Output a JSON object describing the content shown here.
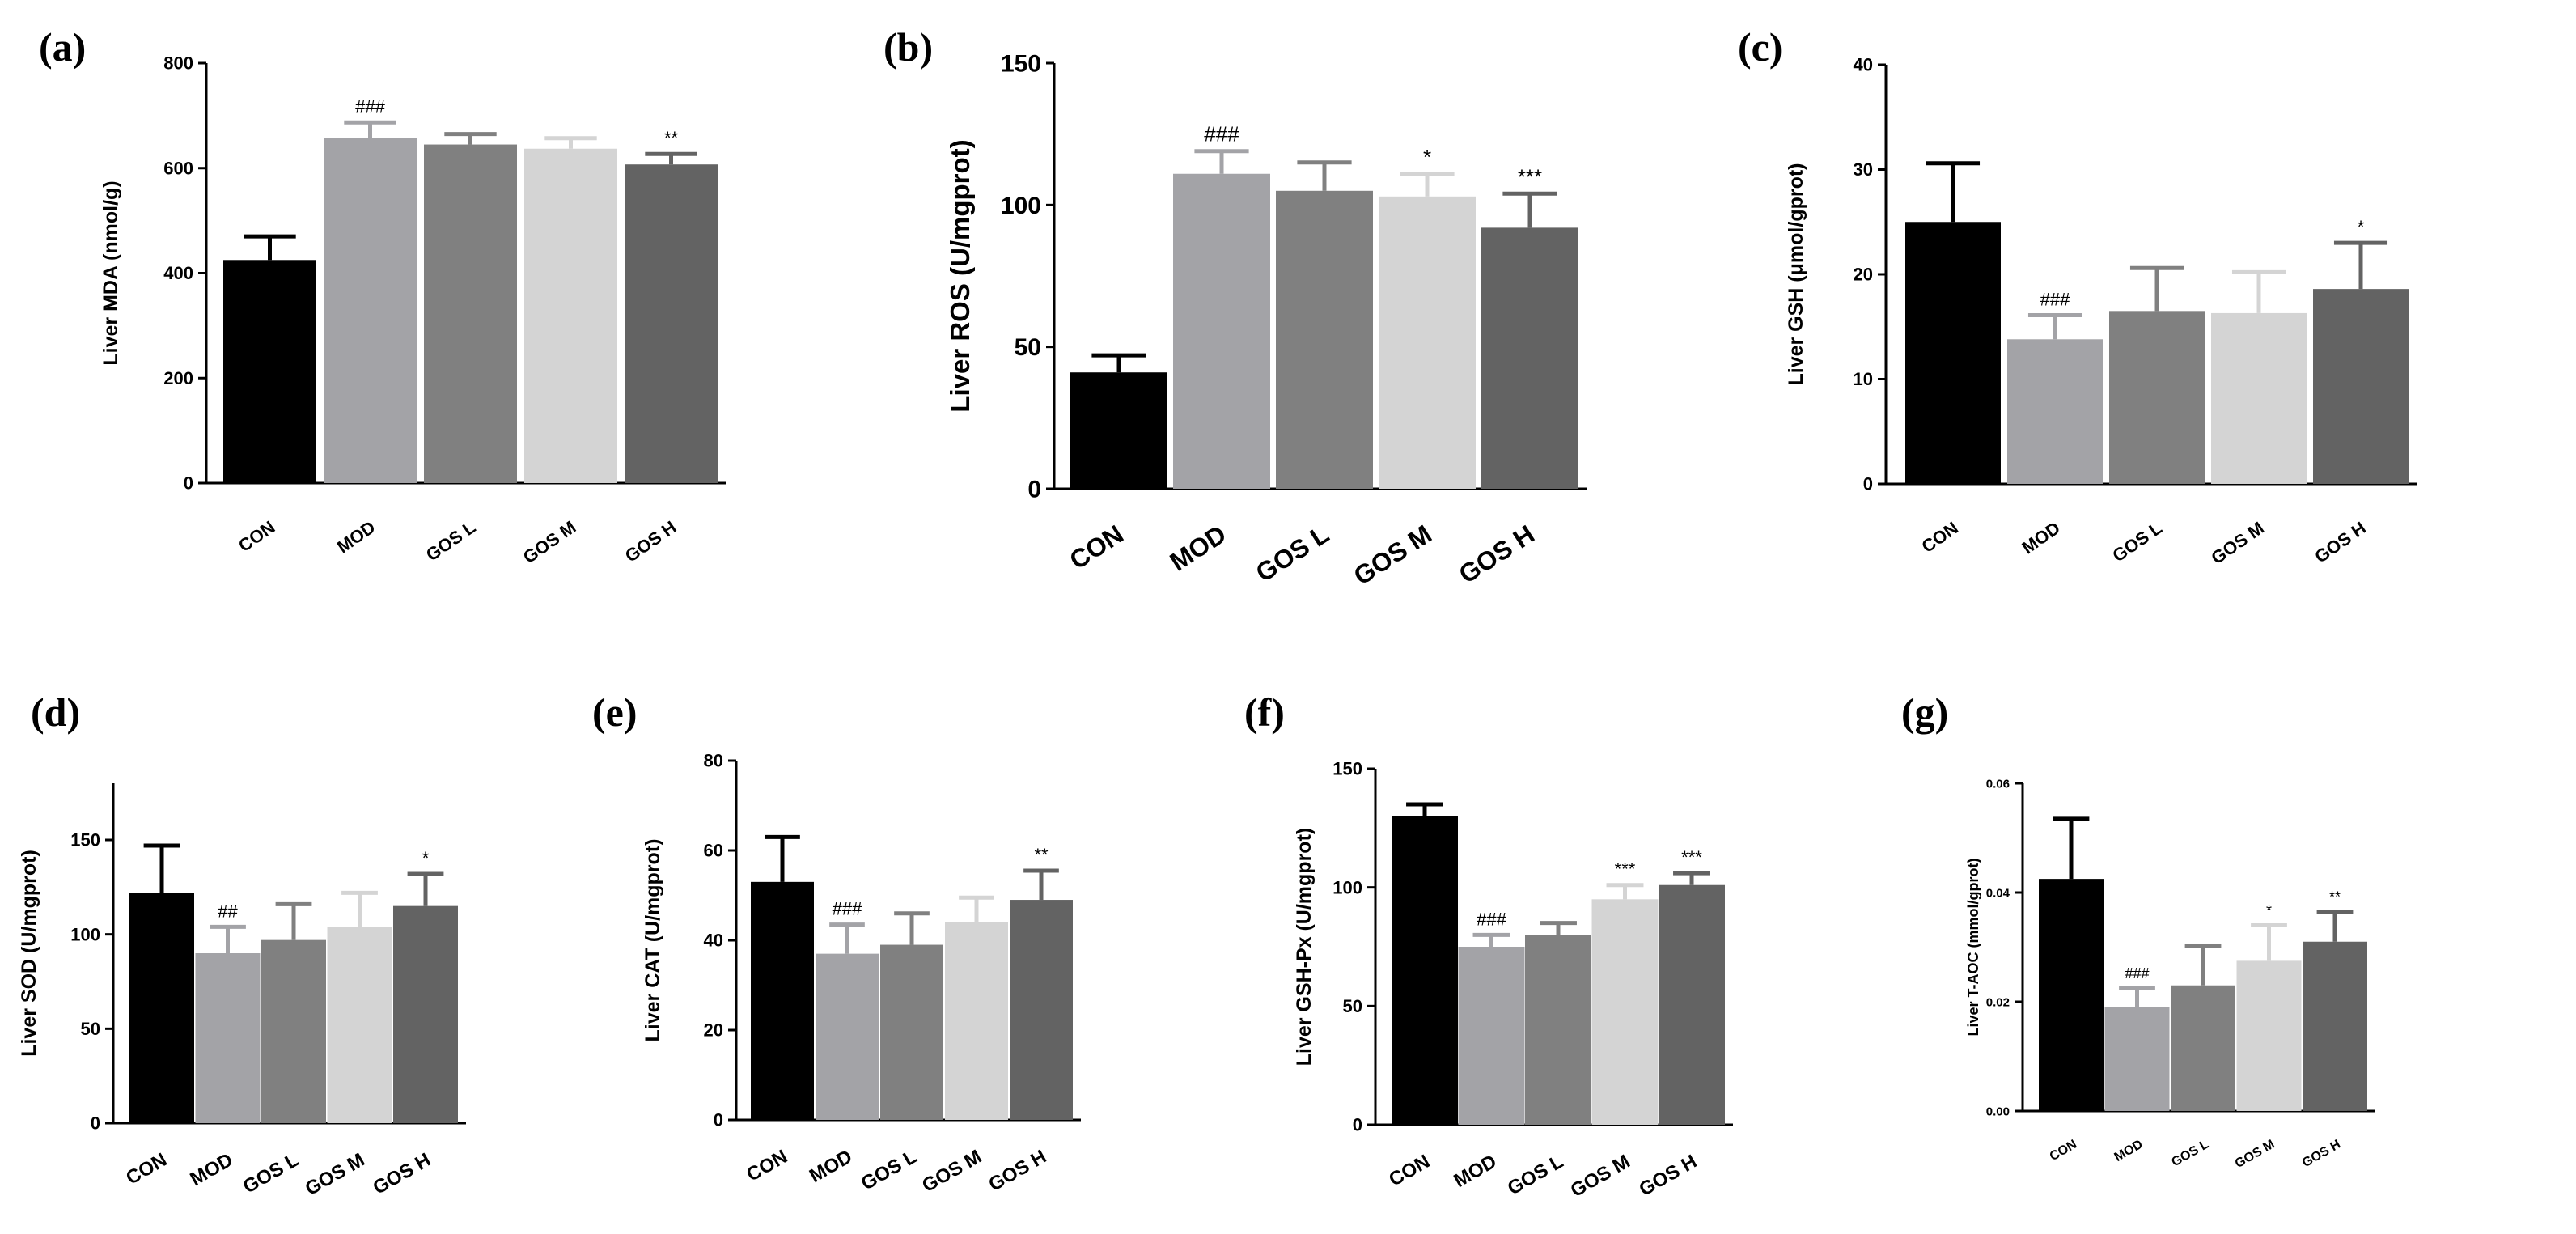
{
  "figure": {
    "categories": [
      "CON",
      "MOD",
      "GOS L",
      "GOS M",
      "GOS H"
    ],
    "bar_colors": [
      "#000000",
      "#a3a3a7",
      "#808080",
      "#d4d4d4",
      "#636363"
    ]
  },
  "chart_data": [
    {
      "panel": "(a)",
      "type": "bar",
      "categories": [
        "CON",
        "MOD",
        "GOS L",
        "GOS M",
        "GOS H"
      ],
      "values": [
        425,
        657,
        645,
        637,
        607
      ],
      "errors": [
        45,
        30,
        20,
        20,
        20
      ],
      "significance": [
        "",
        "###",
        "",
        "",
        "**"
      ],
      "ylabel": "Liver MDA (nmol/g)",
      "ylim": [
        0,
        800
      ],
      "yticks": [
        "0",
        "200",
        "400",
        "600",
        "800"
      ]
    },
    {
      "panel": "(b)",
      "type": "bar",
      "categories": [
        "CON",
        "MOD",
        "GOS L",
        "GOS M",
        "GOS H"
      ],
      "values": [
        41,
        111,
        105,
        103,
        92
      ],
      "errors": [
        6,
        8,
        10,
        8,
        12
      ],
      "significance": [
        "",
        "###",
        "",
        "*",
        "***"
      ],
      "ylabel": "Liver ROS (U/mgprot)",
      "ylim": [
        0,
        150
      ],
      "yticks": [
        "0",
        "50",
        "100",
        "150"
      ]
    },
    {
      "panel": "(c)",
      "type": "bar",
      "categories": [
        "CON",
        "MOD",
        "GOS L",
        "GOS M",
        "GOS H"
      ],
      "values": [
        25,
        13.8,
        16.5,
        16.3,
        18.6
      ],
      "errors": [
        5.6,
        2.3,
        4.1,
        3.9,
        4.4
      ],
      "significance": [
        "",
        "###",
        "",
        "",
        "*"
      ],
      "ylabel": "Liver GSH (μmol/gprot)",
      "ylim": [
        0,
        40
      ],
      "yticks": [
        "0",
        "10",
        "20",
        "30",
        "40"
      ]
    },
    {
      "panel": "(d)",
      "type": "bar",
      "categories": [
        "CON",
        "MOD",
        "GOS L",
        "GOS M",
        "GOS H"
      ],
      "values": [
        122,
        90,
        97,
        104,
        115
      ],
      "errors": [
        25,
        14,
        19,
        18,
        17
      ],
      "significance": [
        "",
        "##",
        "",
        "",
        "*"
      ],
      "ylabel": "Liver SOD (U/mgprot)",
      "ylim": [
        0,
        180
      ],
      "yticks": [
        "0",
        "50",
        "100",
        "150"
      ]
    },
    {
      "panel": "(e)",
      "type": "bar",
      "categories": [
        "CON",
        "MOD",
        "GOS L",
        "GOS M",
        "GOS H"
      ],
      "values": [
        53,
        37,
        39,
        44,
        49
      ],
      "errors": [
        10,
        6.5,
        7,
        5.5,
        6.5
      ],
      "significance": [
        "",
        "###",
        "",
        "",
        "**"
      ],
      "ylabel": "Liver CAT (U/mgprot)",
      "ylim": [
        0,
        80
      ],
      "yticks": [
        "0",
        "20",
        "40",
        "60",
        "80"
      ]
    },
    {
      "panel": "(f)",
      "type": "bar",
      "categories": [
        "CON",
        "MOD",
        "GOS L",
        "GOS M",
        "GOS H"
      ],
      "values": [
        130,
        75,
        80,
        95,
        101
      ],
      "errors": [
        5,
        5,
        5,
        6,
        5
      ],
      "significance": [
        "",
        "###",
        "",
        "***",
        "***"
      ],
      "ylabel": "Liver GSH-Px (U/mgprot)",
      "ylim": [
        0,
        150
      ],
      "yticks": [
        "0",
        "50",
        "100",
        "150"
      ]
    },
    {
      "panel": "(g)",
      "type": "bar",
      "categories": [
        "CON",
        "MOD",
        "GOS L",
        "GOS M",
        "GOS H"
      ],
      "values": [
        0.0425,
        0.019,
        0.023,
        0.0275,
        0.031
      ],
      "errors": [
        0.011,
        0.0035,
        0.0073,
        0.0065,
        0.0055
      ],
      "significance": [
        "",
        "###",
        "",
        "*",
        "**"
      ],
      "ylabel": "Liver T-AOC (mmol/gprot)",
      "ylim": [
        0,
        0.06
      ],
      "yticks": [
        "0.00",
        "0.02",
        "0.04",
        "0.06"
      ]
    }
  ]
}
